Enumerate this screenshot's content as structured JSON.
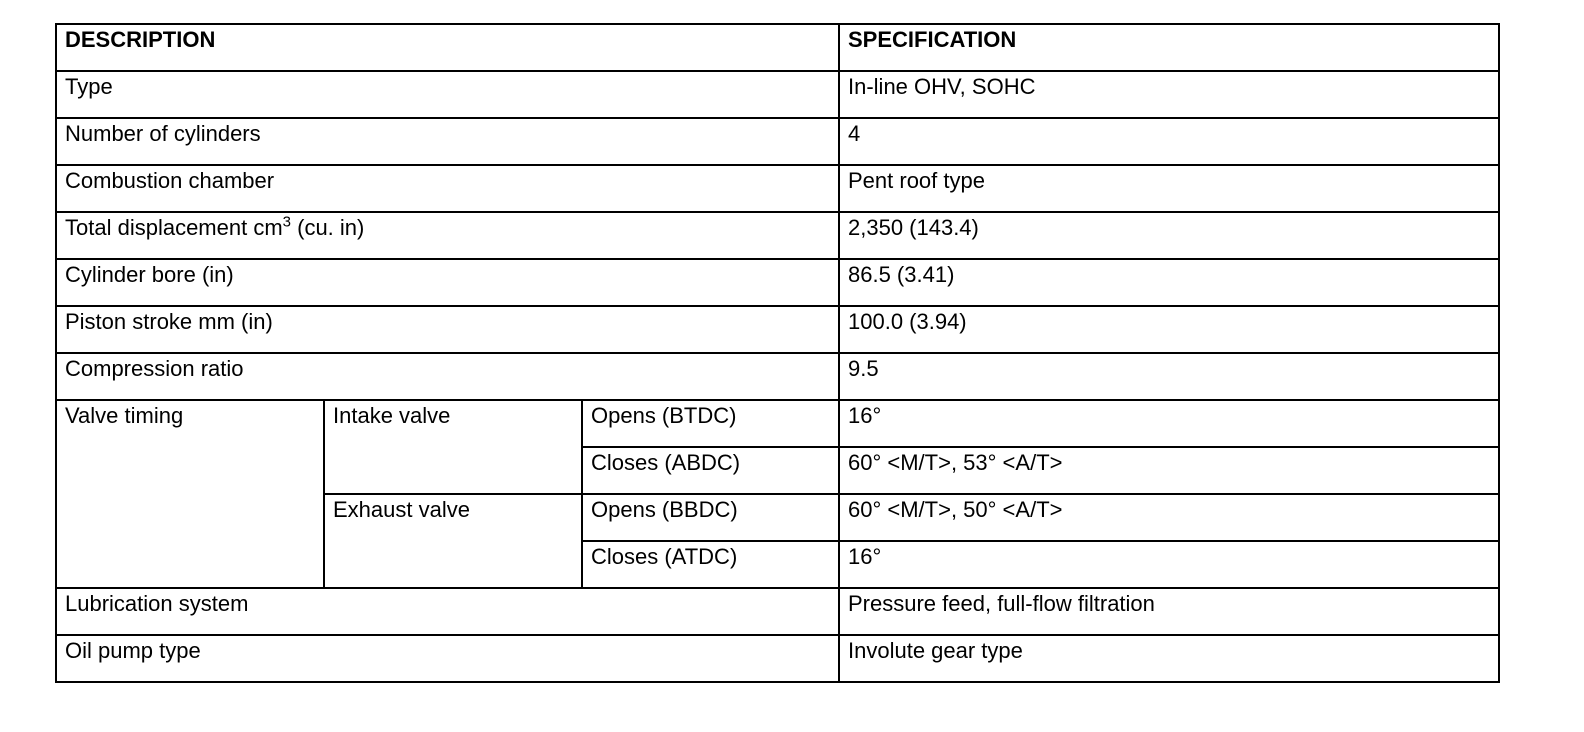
{
  "header": {
    "description": "DESCRIPTION",
    "specification": "SPECIFICATION"
  },
  "rows": [
    {
      "label": "Type",
      "value": "In-line OHV, SOHC"
    },
    {
      "label": "Number of cylinders",
      "value": "4"
    },
    {
      "label": "Combustion chamber",
      "value": "Pent roof type"
    },
    {
      "label": "Total displacement cm",
      "sup": "3",
      "label_suffix": " (cu. in)",
      "value": "2,350 (143.4)"
    },
    {
      "label": "Cylinder bore (in)",
      "value": "86.5 (3.41)"
    },
    {
      "label": "Piston stroke mm (in)",
      "value": "100.0 (3.94)"
    },
    {
      "label": "Compression ratio",
      "value": "9.5"
    }
  ],
  "valve_timing": {
    "label": "Valve timing",
    "intake": {
      "label": "Intake valve",
      "opens": {
        "label": "Opens (BTDC)",
        "value": "16°"
      },
      "closes": {
        "label": "Closes (ABDC)",
        "value": "60° <M/T>, 53° <A/T>"
      }
    },
    "exhaust": {
      "label": "Exhaust valve",
      "opens": {
        "label": "Opens (BBDC)",
        "value": "60° <M/T>, 50° <A/T>"
      },
      "closes": {
        "label": "Closes (ATDC)",
        "value": "16°"
      }
    }
  },
  "rows_after": [
    {
      "label": "Lubrication system",
      "value": "Pressure feed, full-flow filtration"
    },
    {
      "label": "Oil pump type",
      "value": "Involute gear type"
    }
  ]
}
